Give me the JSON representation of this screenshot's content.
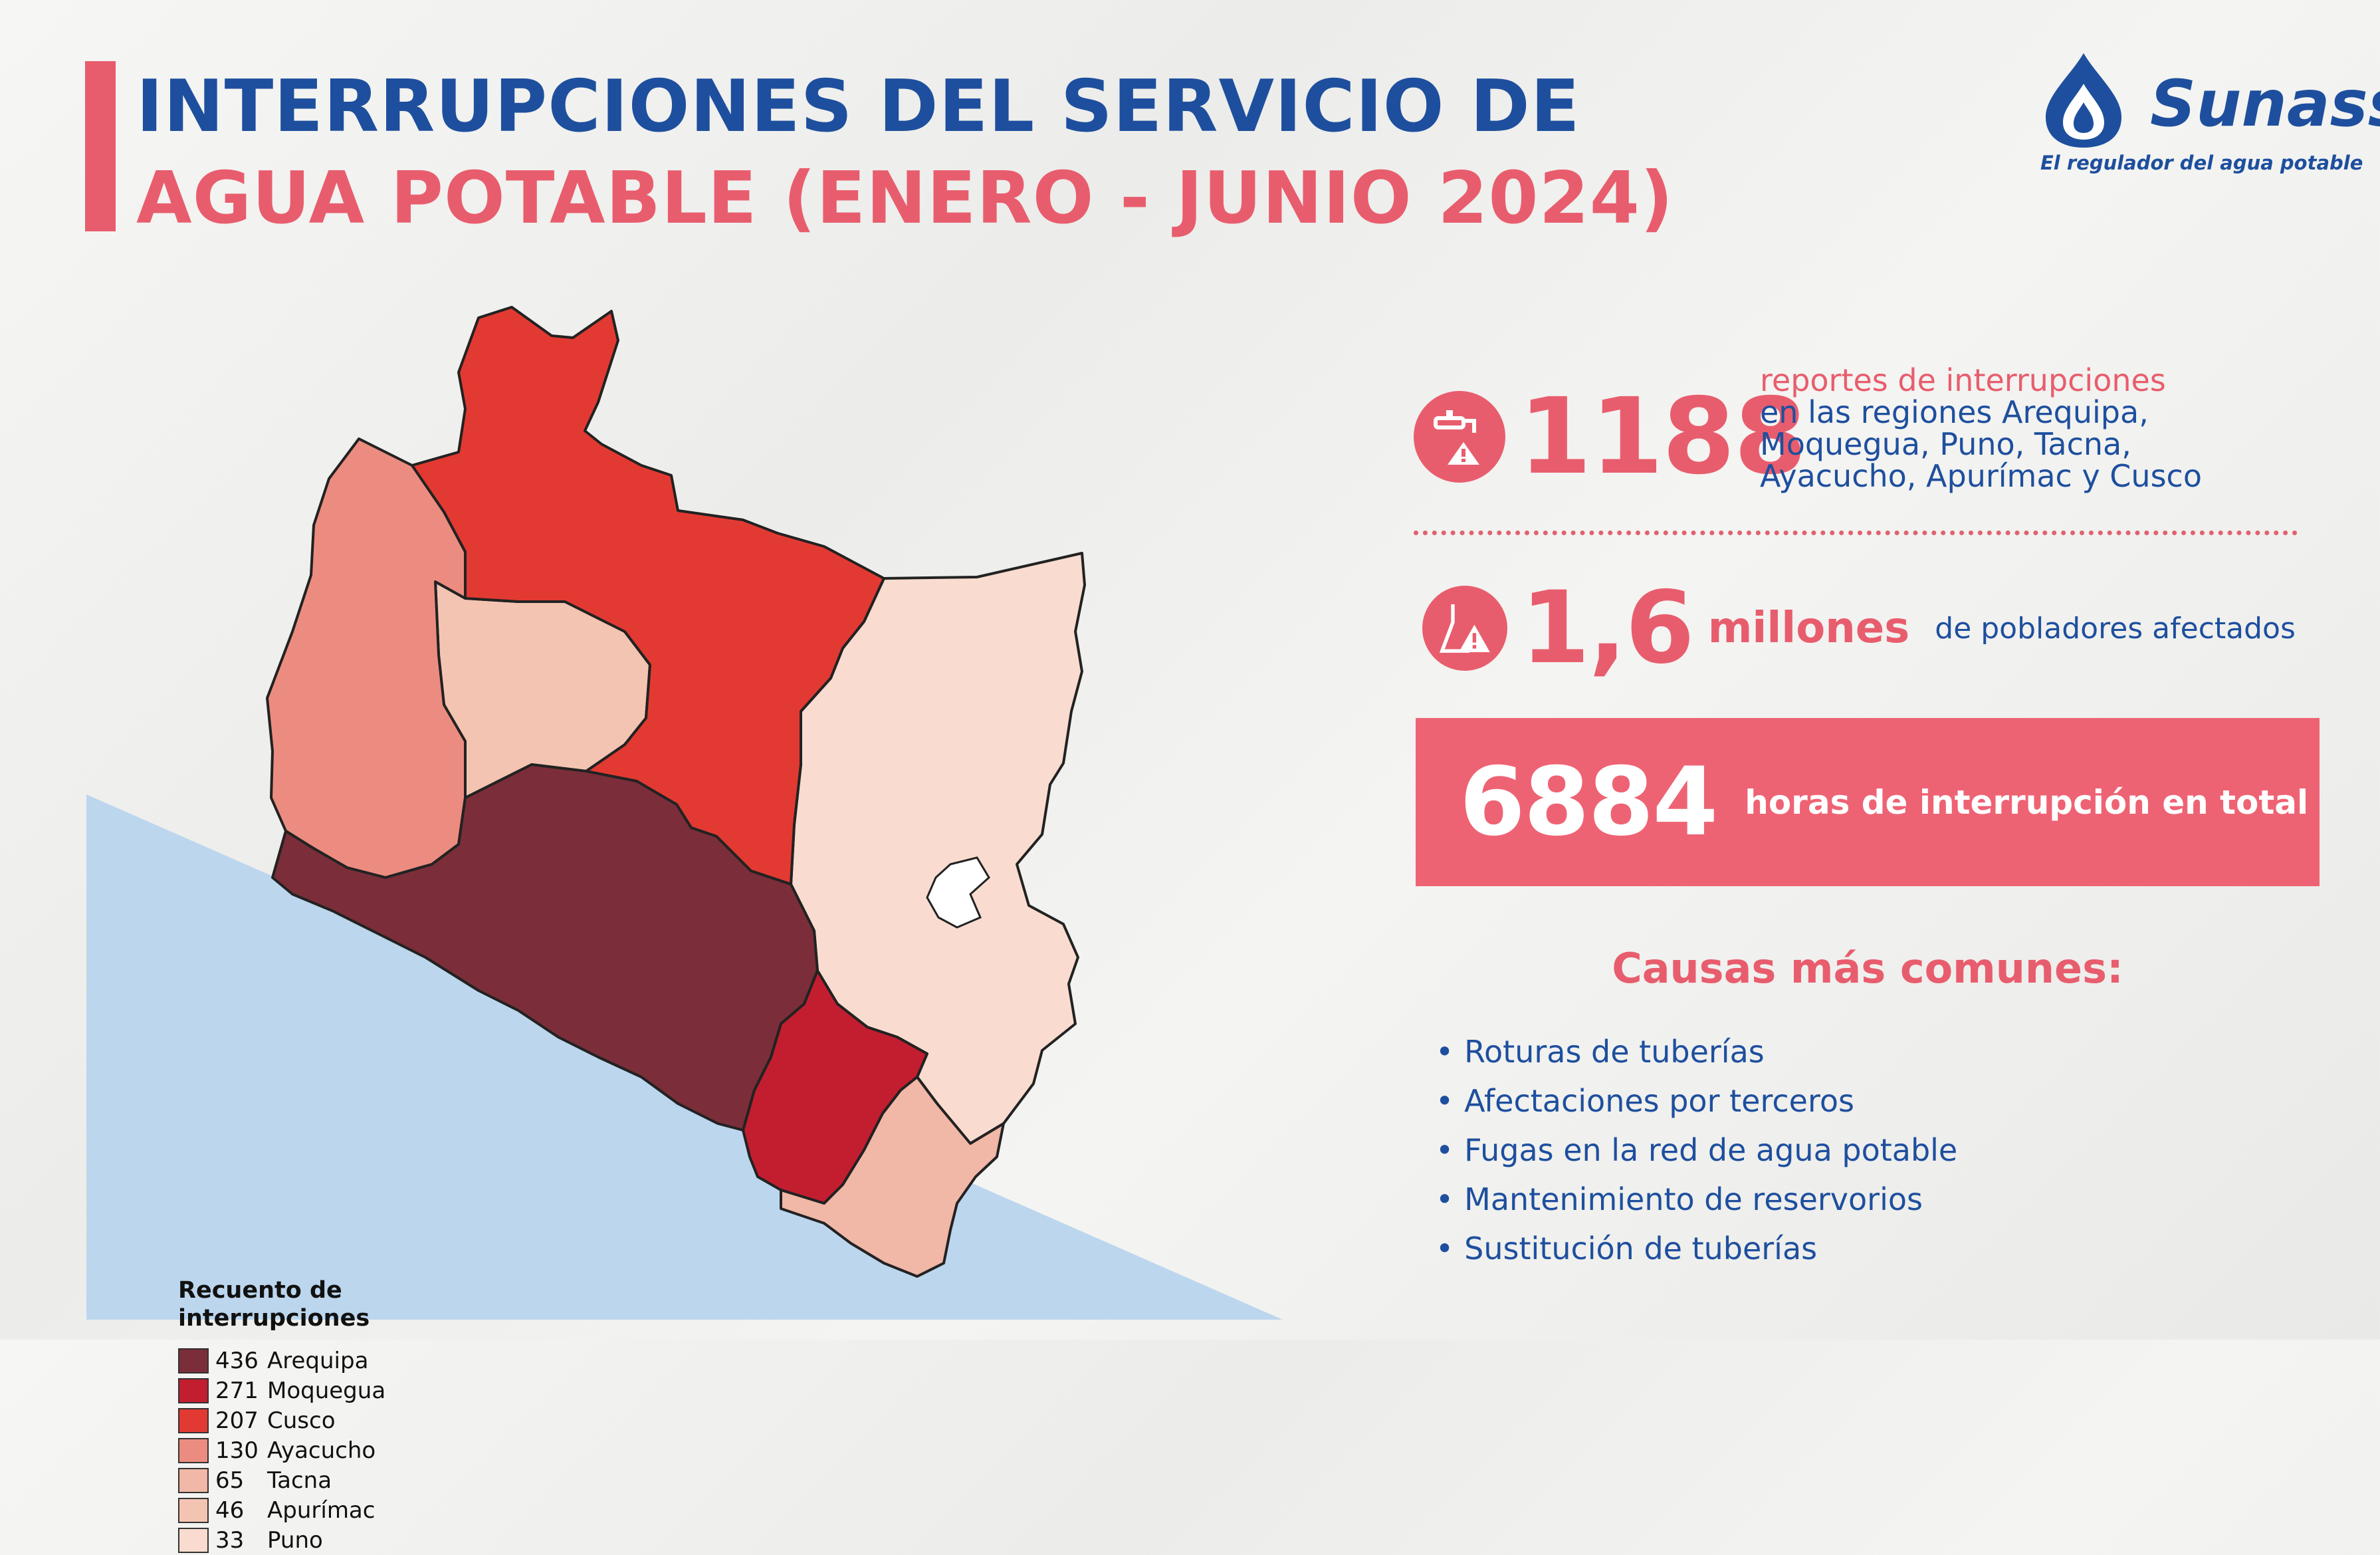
{
  "colors": {
    "navy": "#1e4f9e",
    "pink": "#e85d6d",
    "pink_box": "#ee6374",
    "sea": "#bcd6ee",
    "border": "#222222"
  },
  "header": {
    "title_line1": "INTERRUPCIONES DEL SERVICIO DE",
    "title_line2": "AGUA POTABLE (ENERO - JUNIO 2024)"
  },
  "logo": {
    "name": "Sunass",
    "tagline": "El regulador del agua potable",
    "icon": "water-drop-icon"
  },
  "map": {
    "legend_title": "Recuento de\ninterrupciones",
    "regions": [
      {
        "value": "436",
        "name": "Arequipa",
        "color": "#7b2e39"
      },
      {
        "value": "271",
        "name": "Moquegua",
        "color": "#c21e30"
      },
      {
        "value": "207",
        "name": "Cusco",
        "color": "#e23a32"
      },
      {
        "value": "130",
        "name": "Ayacucho",
        "color": "#ec8c80"
      },
      {
        "value": "65",
        "name": "Tacna",
        "color": "#f1b7a7"
      },
      {
        "value": "46",
        "name": "Apurímac",
        "color": "#f4c4b2"
      },
      {
        "value": "33",
        "name": "Puno",
        "color": "#f9dccf"
      }
    ]
  },
  "stats": {
    "reports": {
      "icon": "faucet-warning-icon",
      "number": "1188",
      "label_highlight": "reportes de interrupciones",
      "label_rest": "en las regiones Arequipa, Moquegua, Puno, Tacna, Ayacucho, Apurímac y Cusco"
    },
    "population": {
      "icon": "flask-warning-icon",
      "number": "1,6",
      "unit": "millones",
      "label": "de pobladores afectados"
    },
    "hours": {
      "number": "6884",
      "label": "horas de interrupción en total"
    }
  },
  "causes": {
    "title": "Causas más comunes:",
    "bullet": "•",
    "items": [
      "Roturas de tuberías",
      "Afectaciones por terceros",
      "Fugas en la red de agua potable",
      "Mantenimiento de reservorios",
      "Sustitución de tuberías"
    ]
  }
}
